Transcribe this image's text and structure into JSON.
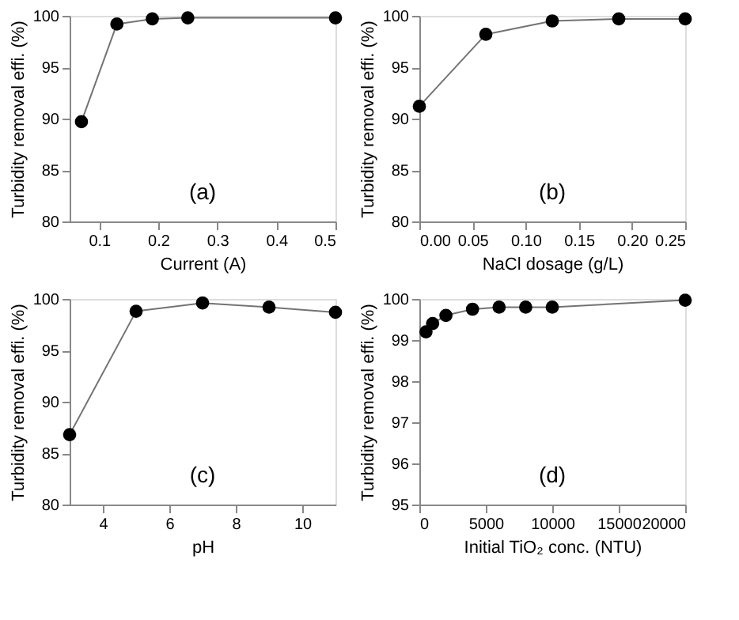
{
  "chart_data": [
    {
      "type": "line",
      "xlabel": "Current (A)",
      "ylabel": "Turbidity removal effi. (%)",
      "annotations": [
        "(a)"
      ],
      "x": [
        0.07,
        0.13,
        0.19,
        0.25,
        0.5
      ],
      "xlim": [
        0.05,
        0.5
      ],
      "xticks": [
        0.1,
        0.2,
        0.3,
        0.4,
        0.5
      ],
      "ylim": [
        80,
        100
      ],
      "yticks": [
        80,
        85,
        90,
        95,
        100
      ],
      "marker": "circle",
      "grid": false,
      "series": [
        {
          "color": "#000000",
          "values": [
            89.7,
            99.2,
            99.7,
            99.8,
            99.8
          ]
        }
      ]
    },
    {
      "type": "line",
      "xlabel": "NaCl dosage (g/L)",
      "ylabel": "Turbidity removal effi. (%)",
      "annotations": [
        "(b)"
      ],
      "x": [
        0,
        0.0625,
        0.125,
        0.1875,
        0.25
      ],
      "xlim": [
        0,
        0.25
      ],
      "xticks": [
        {
          "value": 0,
          "label": "0.00"
        },
        0.05,
        {
          "value": 0.1,
          "label": "0.10"
        },
        0.15,
        {
          "value": 0.2,
          "label": "0.20"
        },
        0.25
      ],
      "ylim": [
        80,
        100
      ],
      "yticks": [
        80,
        85,
        90,
        95,
        100
      ],
      "marker": "circle",
      "grid": false,
      "series": [
        {
          "color": "#000000",
          "values": [
            91.2,
            98.2,
            99.5,
            99.7,
            99.7
          ]
        }
      ]
    },
    {
      "type": "line",
      "xlabel": "pH",
      "ylabel": "Turbidity removal effi. (%)",
      "annotations": [
        "(c)"
      ],
      "x": [
        3,
        5,
        7,
        9,
        11
      ],
      "xlim": [
        3,
        11
      ],
      "xticks": [
        4,
        6,
        8,
        10
      ],
      "ylim": [
        80,
        100
      ],
      "yticks": [
        80,
        85,
        90,
        95,
        100
      ],
      "marker": "circle",
      "grid": false,
      "series": [
        {
          "color": "#000000",
          "values": [
            86.8,
            98.8,
            99.6,
            99.2,
            98.7
          ]
        }
      ]
    },
    {
      "type": "line",
      "xlabel": "Initial TiO₂ conc. (NTU)",
      "ylabel": "Turbidity removal effi. (%)",
      "annotations": [
        "(d)"
      ],
      "x": [
        500,
        1000,
        2000,
        4000,
        6000,
        8000,
        10000,
        20000
      ],
      "xlim": [
        0,
        20000
      ],
      "xticks": [
        0,
        5000,
        10000,
        15000,
        20000
      ],
      "ylim": [
        95,
        100
      ],
      "yticks": [
        95,
        96,
        97,
        98,
        99,
        100
      ],
      "marker": "circle",
      "grid": false,
      "series": [
        {
          "color": "#000000",
          "values": [
            99.2,
            99.4,
            99.6,
            99.75,
            99.8,
            99.8,
            99.8,
            99.97
          ]
        }
      ]
    }
  ]
}
